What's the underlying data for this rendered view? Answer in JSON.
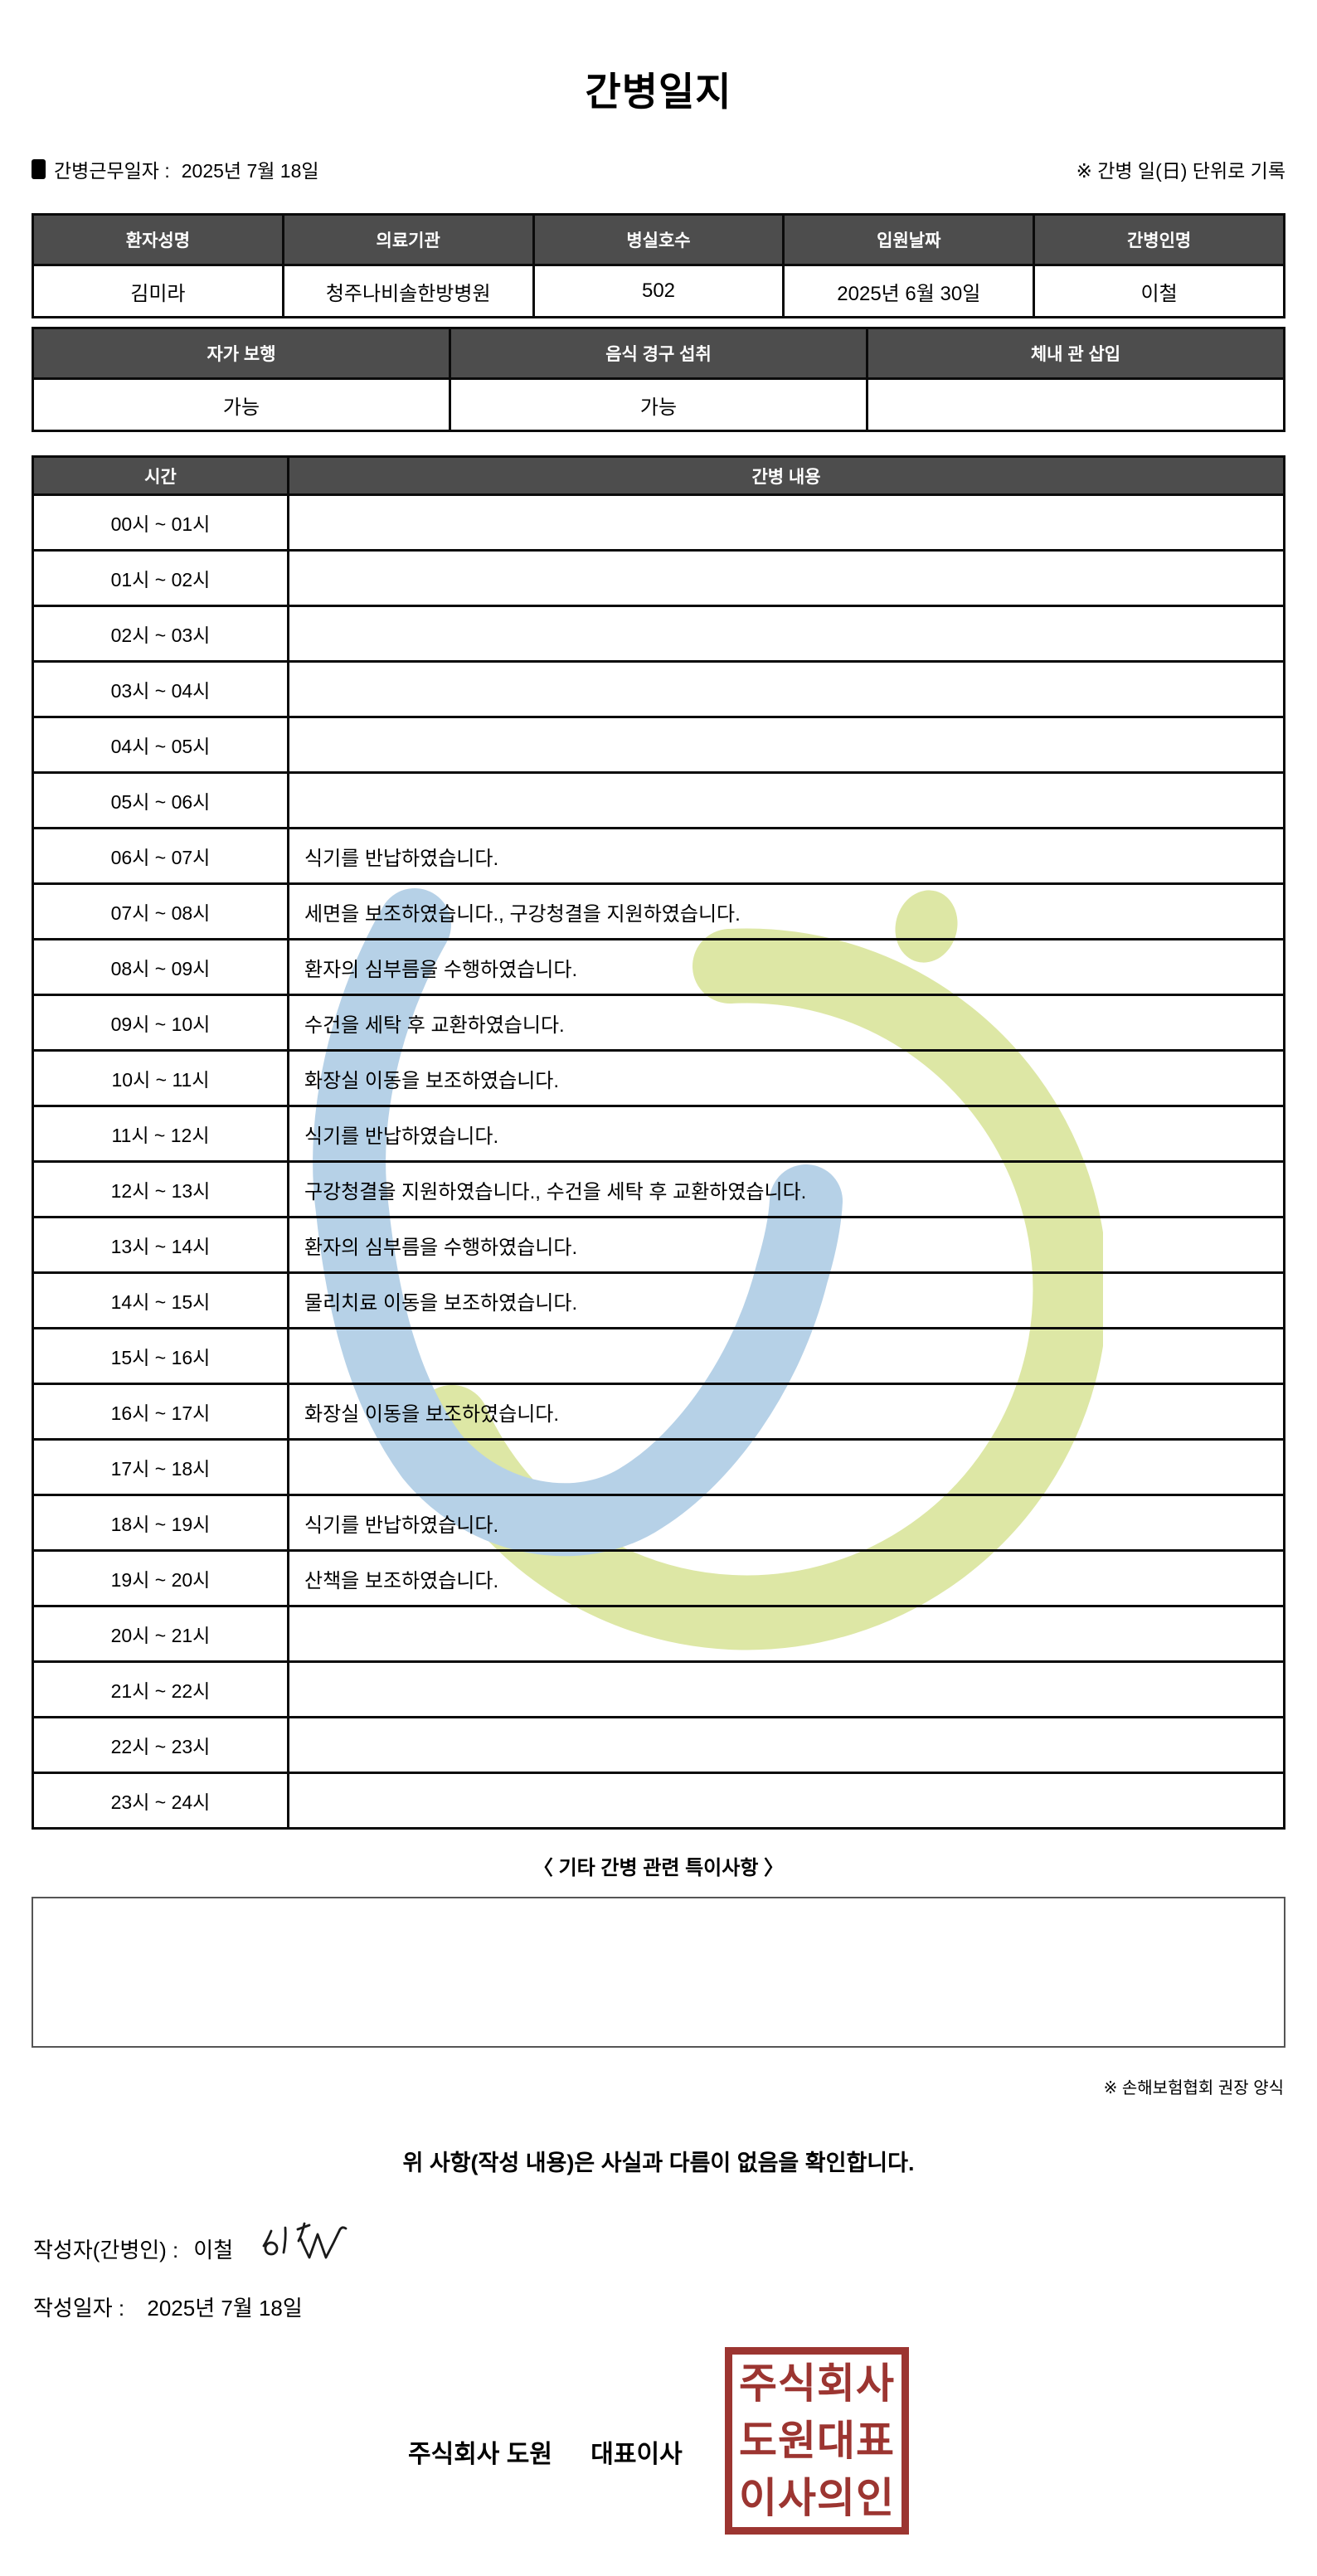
{
  "title": "간병일지",
  "header": {
    "work_date_label": "간병근무일자 :",
    "work_date": "2025년 7월 18일",
    "unit_note": "※ 간병 일(日) 단위로 기록"
  },
  "patient_table": {
    "headers": [
      "환자성명",
      "의료기관",
      "병실호수",
      "입원날짜",
      "간병인명"
    ],
    "values": [
      "김미라",
      "청주나비솔한방병원",
      "502",
      "2025년 6월 30일",
      "이철"
    ]
  },
  "status_table": {
    "headers": [
      "자가 보행",
      "음식 경구 섭취",
      "체내 관 삽입"
    ],
    "values": [
      "가능",
      "가능",
      ""
    ]
  },
  "care_table": {
    "time_header": "시간",
    "content_header": "간병 내용",
    "rows": [
      {
        "time": "00시 ~ 01시",
        "content": ""
      },
      {
        "time": "01시 ~ 02시",
        "content": ""
      },
      {
        "time": "02시 ~ 03시",
        "content": ""
      },
      {
        "time": "03시 ~ 04시",
        "content": ""
      },
      {
        "time": "04시 ~ 05시",
        "content": ""
      },
      {
        "time": "05시 ~ 06시",
        "content": ""
      },
      {
        "time": "06시 ~ 07시",
        "content": "식기를 반납하였습니다."
      },
      {
        "time": "07시 ~ 08시",
        "content": "세면을 보조하였습니다., 구강청결을 지원하였습니다."
      },
      {
        "time": "08시 ~ 09시",
        "content": "환자의 심부름을 수행하였습니다."
      },
      {
        "time": "09시 ~ 10시",
        "content": "수건을 세탁 후 교환하였습니다."
      },
      {
        "time": "10시 ~ 11시",
        "content": "화장실 이동을 보조하였습니다."
      },
      {
        "time": "11시 ~ 12시",
        "content": "식기를 반납하였습니다."
      },
      {
        "time": "12시 ~ 13시",
        "content": "구강청결을 지원하였습니다., 수건을 세탁 후 교환하였습니다."
      },
      {
        "time": "13시 ~ 14시",
        "content": "환자의 심부름을 수행하였습니다."
      },
      {
        "time": "14시 ~ 15시",
        "content": "물리치료 이동을 보조하였습니다."
      },
      {
        "time": "15시 ~ 16시",
        "content": ""
      },
      {
        "time": "16시 ~ 17시",
        "content": "화장실 이동을 보조하였습니다."
      },
      {
        "time": "17시 ~ 18시",
        "content": ""
      },
      {
        "time": "18시 ~ 19시",
        "content": "식기를 반납하였습니다."
      },
      {
        "time": "19시 ~ 20시",
        "content": "산책을 보조하였습니다."
      },
      {
        "time": "20시 ~ 21시",
        "content": ""
      },
      {
        "time": "21시 ~ 22시",
        "content": ""
      },
      {
        "time": "22시 ~ 23시",
        "content": ""
      },
      {
        "time": "23시 ~ 24시",
        "content": ""
      }
    ]
  },
  "notes": {
    "heading": "〈 기타 간병 관련 특이사항 〉",
    "content": "",
    "form_note": "※ 손해보험협회 권장 양식"
  },
  "footer": {
    "confirmation": "위 사항(작성 내용)은 사실과 다름이 없음을 확인합니다.",
    "writer_label": "작성자(간병인) :",
    "writer_name": "이철",
    "date_label": "작성일자 :",
    "date": "2025년 7월 18일",
    "company_name": "주식회사 도원",
    "company_title": "대표이사",
    "stamp_lines": [
      "주식회사",
      "도원대표",
      "이사의인"
    ]
  },
  "colors": {
    "header_bg": "#4d4d4d",
    "stamp_red": "#9c3531",
    "watermark_blue": "#b6d1e7",
    "watermark_green": "#dde7a5"
  }
}
